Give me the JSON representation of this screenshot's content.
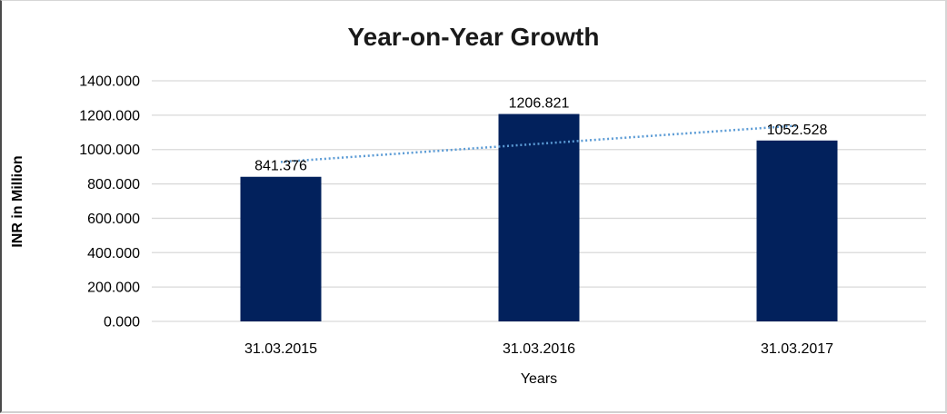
{
  "chart_data": {
    "type": "bar",
    "title": "Year-on-Year Growth",
    "xlabel": "Years",
    "ylabel": "INR in Million",
    "categories": [
      "31.03.2015",
      "31.03.2016",
      "31.03.2017"
    ],
    "values": [
      841.376,
      1206.821,
      1052.528
    ],
    "data_labels": [
      "841.376",
      "1206.821",
      "1052.528"
    ],
    "y_ticks": [
      "0.000",
      "200.000",
      "400.000",
      "600.000",
      "800.000",
      "1000.000",
      "1200.000",
      "1400.000"
    ],
    "y_tick_values": [
      0,
      200,
      400,
      600,
      800,
      1000,
      1200,
      1400
    ],
    "ylim": [
      0,
      1400
    ],
    "grid": true,
    "legend": "none",
    "bar_color": "#02215C",
    "gridline_color": "#D9D9D9",
    "trendline": {
      "type": "linear",
      "style": "dotted",
      "color": "#5B9BD5"
    }
  }
}
